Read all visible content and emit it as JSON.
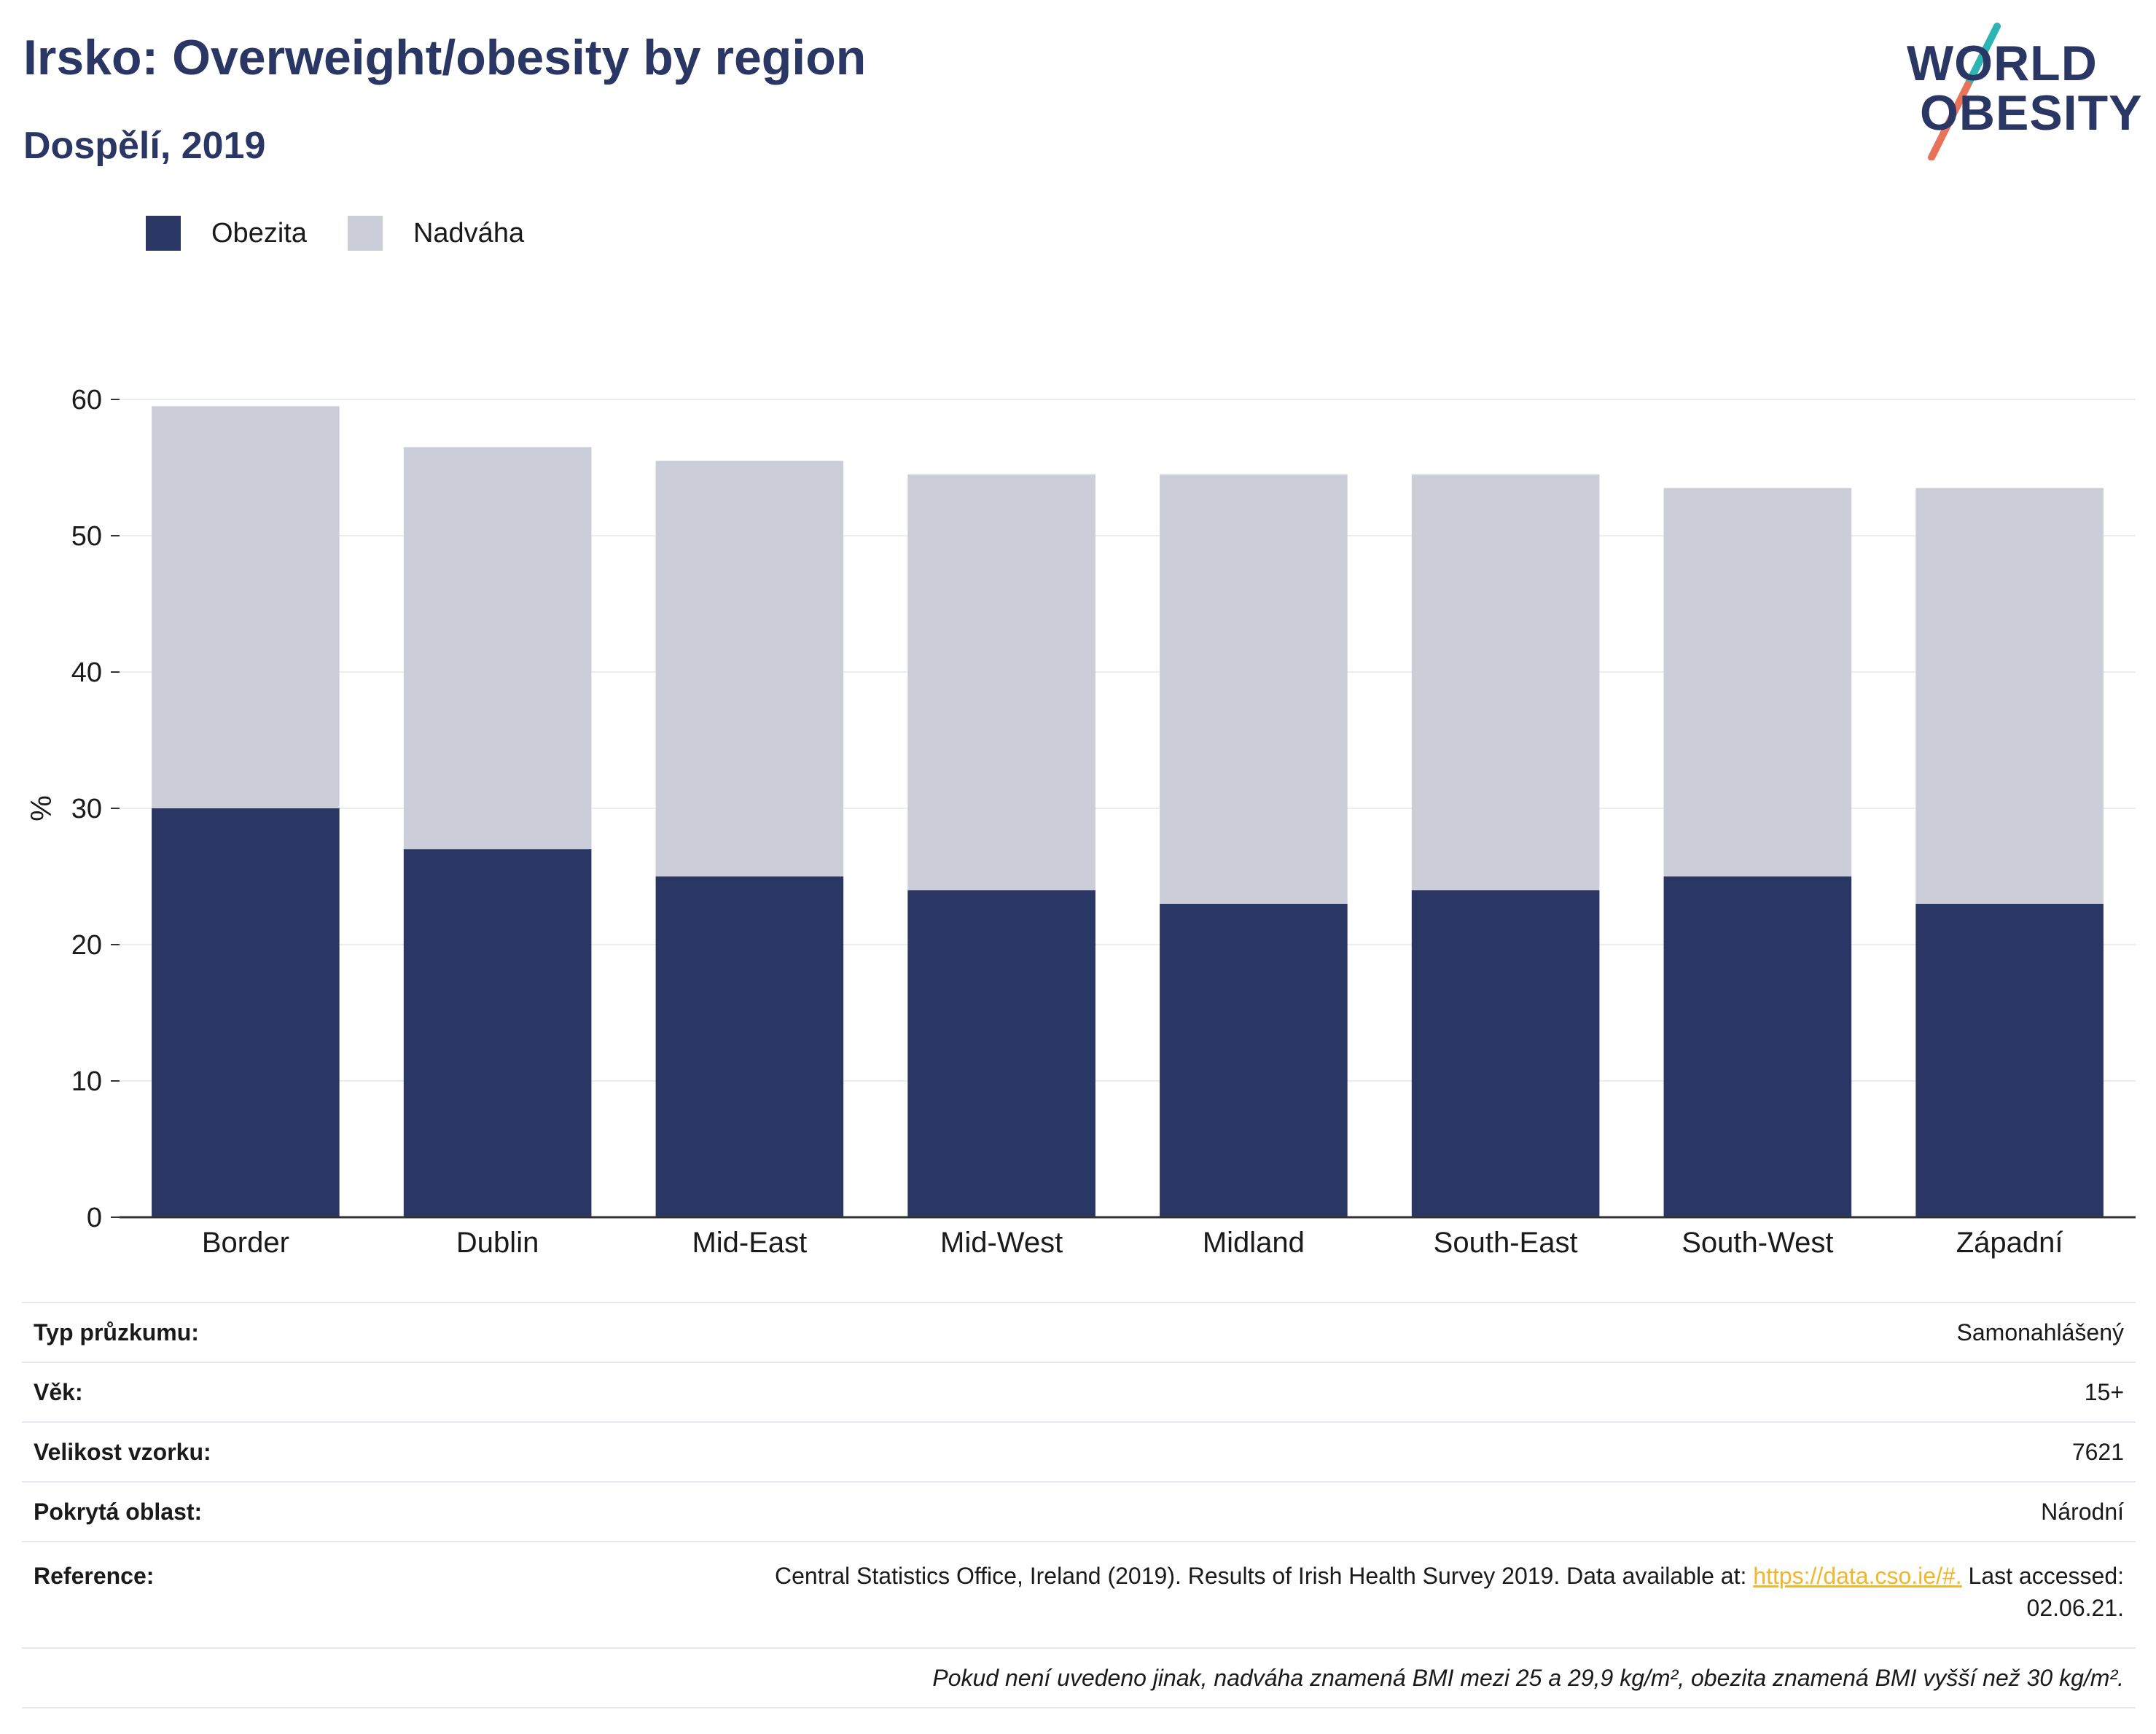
{
  "header": {
    "title": "Irsko: Overweight/obesity by region",
    "subtitle": "Dospělí, 2019"
  },
  "logo": {
    "line1": "WORLD",
    "line2": "OBESITY",
    "colors": {
      "text": "#2a3663",
      "slash_top": "#2bb5b5",
      "slash_bottom": "#e8735a"
    }
  },
  "legend": [
    {
      "label": "Obezita",
      "color": "#2a3663"
    },
    {
      "label": "Nadváha",
      "color": "#cbcdd8"
    }
  ],
  "chart_data": {
    "type": "bar",
    "stacked": true,
    "categories": [
      "Border",
      "Dublin",
      "Mid-East",
      "Mid-West",
      "Midland",
      "South-East",
      "South-West",
      "Západní"
    ],
    "series": [
      {
        "name": "Obezita",
        "color": "#2a3663",
        "values": [
          30,
          27,
          25,
          24,
          23,
          24,
          25,
          23
        ]
      },
      {
        "name": "Nadváha",
        "color": "#cbcdd8",
        "values": [
          29.5,
          29.5,
          30.5,
          30.5,
          31.5,
          30.5,
          28.5,
          30.5
        ]
      }
    ],
    "ylabel": "%",
    "ylim": [
      0,
      60
    ],
    "yticks": [
      "0",
      "10",
      "20",
      "30",
      "40",
      "50",
      "60"
    ],
    "grid": true,
    "legend_position": "top-left"
  },
  "info": {
    "survey_type": {
      "label": "Typ průzkumu:",
      "value": "Samonahlášený"
    },
    "age": {
      "label": "Věk:",
      "value": "15+"
    },
    "sample_size": {
      "label": "Velikost vzorku:",
      "value": "7621"
    },
    "area": {
      "label": "Pokrytá oblast:",
      "value": "Národní"
    },
    "reference": {
      "label": "Reference:",
      "text_before": "Central Statistics Office, Ireland (2019). Results of Irish Health Survey 2019. Data available at: ",
      "link": "https://data.cso.ie/#.",
      "text_after": " Last accessed:",
      "text_line2": "02.06.21."
    },
    "note": "Pokud není uvedeno jinak, nadváha znamená BMI mezi 25 a 29,9 kg/m², obezita znamená BMI vyšší než 30 kg/m²."
  }
}
